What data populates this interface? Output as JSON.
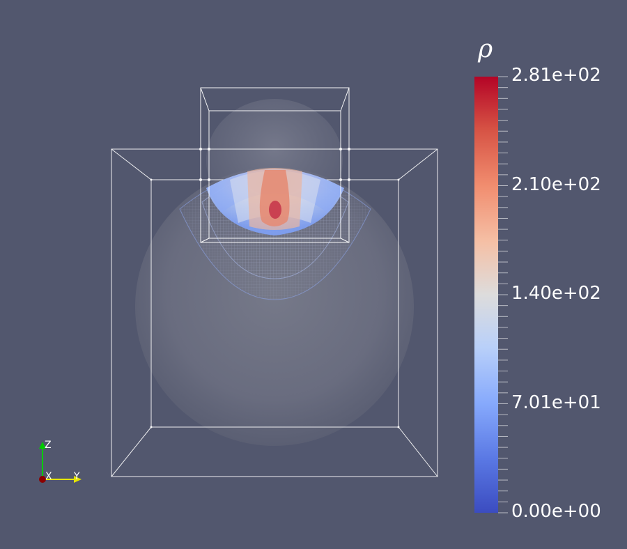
{
  "colorbar": {
    "title": "ρ",
    "labels": [
      "2.81e+02",
      "2.10e+02",
      "1.40e+02",
      "7.01e+01",
      "0.00e+00"
    ],
    "colors": {
      "top": "#b40426",
      "upper": "#f18d6f",
      "mid": "#dddcdc",
      "lower": "#86a9fc",
      "bottom": "#3b4cc0"
    }
  },
  "orientation_axes": {
    "x_label": "X",
    "y_label": "Y",
    "z_label": "Z",
    "x_color": "#8b0000",
    "y_color": "#e5e500",
    "z_color": "#00cc00"
  },
  "colors": {
    "background": "#52576e",
    "wireframe": "#ffffff"
  }
}
